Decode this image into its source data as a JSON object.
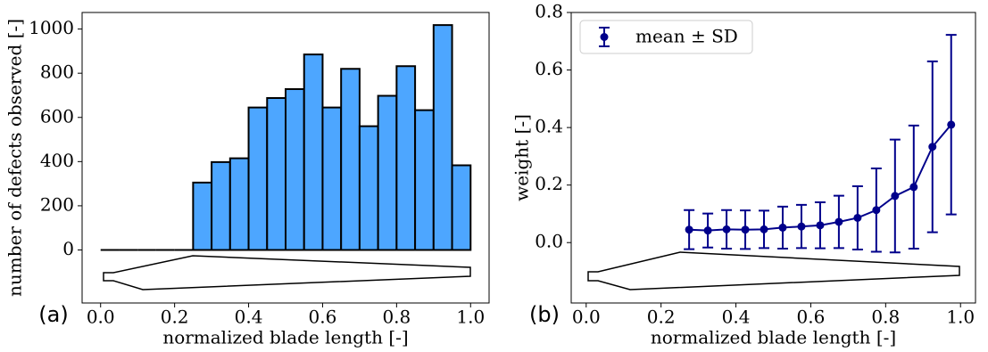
{
  "chart_data": [
    {
      "type": "histogram",
      "panel_label": "(a)",
      "xlabel": "normalized blade length [-]",
      "ylabel": "number of defects observed [-]",
      "bins": [
        0.0,
        0.05,
        0.1,
        0.15,
        0.2,
        0.25,
        0.3,
        0.35,
        0.4,
        0.45,
        0.5,
        0.55,
        0.6,
        0.65,
        0.7,
        0.75,
        0.8,
        0.85,
        0.9,
        0.95,
        1.0
      ],
      "counts": [
        0,
        0,
        0,
        0,
        0,
        305,
        398,
        415,
        645,
        688,
        728,
        885,
        645,
        820,
        560,
        698,
        832,
        633,
        1018,
        383
      ],
      "color": "#4da6ff",
      "edgecolor": "#000000",
      "xlim": [
        -0.05,
        1.05
      ],
      "xticks": [
        {
          "value": 0,
          "label": "0.0"
        },
        {
          "value": 0.2,
          "label": "0.2"
        },
        {
          "value": 0.4,
          "label": "0.4"
        },
        {
          "value": 0.6,
          "label": "0.6"
        },
        {
          "value": 0.8,
          "label": "0.8"
        },
        {
          "value": 1,
          "label": "1.0"
        }
      ],
      "ylim": [
        -240,
        1075
      ],
      "yticks": [
        0,
        200,
        400,
        600,
        800,
        1000
      ]
    },
    {
      "type": "errorbar",
      "panel_label": "(b)",
      "xlabel": "normalized blade length [-]",
      "ylabel": "weight [-]",
      "x": [
        0.275,
        0.325,
        0.375,
        0.425,
        0.475,
        0.525,
        0.575,
        0.625,
        0.675,
        0.725,
        0.775,
        0.825,
        0.875,
        0.925,
        0.975
      ],
      "series": [
        {
          "name": "mean ± SD",
          "color": "#00008b",
          "values": [
            0.045,
            0.042,
            0.046,
            0.045,
            0.046,
            0.052,
            0.056,
            0.06,
            0.072,
            0.086,
            0.113,
            0.162,
            0.193,
            0.333,
            0.41
          ],
          "errors": [
            0.068,
            0.059,
            0.067,
            0.067,
            0.065,
            0.073,
            0.075,
            0.08,
            0.091,
            0.11,
            0.145,
            0.196,
            0.214,
            0.297,
            0.312
          ]
        }
      ],
      "legend": "upper left",
      "xlim": [
        -0.04,
        1.04
      ],
      "xticks": [
        {
          "value": 0,
          "label": "0.0"
        },
        {
          "value": 0.2,
          "label": "0.2"
        },
        {
          "value": 0.4,
          "label": "0.4"
        },
        {
          "value": 0.6,
          "label": "0.6"
        },
        {
          "value": 0.8,
          "label": "0.8"
        },
        {
          "value": 1,
          "label": "1.0"
        }
      ],
      "ylim": [
        -0.21,
        0.8
      ],
      "yticks": [
        {
          "value": 0,
          "label": "0.0"
        },
        {
          "value": 0.2,
          "label": "0.2"
        },
        {
          "value": 0.4,
          "label": "0.4"
        },
        {
          "value": 0.6,
          "label": "0.6"
        },
        {
          "value": 0.8,
          "label": "0.8"
        }
      ]
    }
  ]
}
